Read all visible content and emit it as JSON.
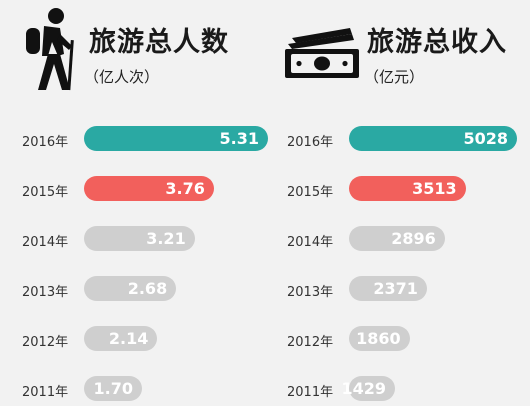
{
  "colors": {
    "highlight_2016": "#2aa9a3",
    "highlight_2015": "#f2605c",
    "neutral": "#cfcfcf"
  },
  "chart_data": [
    {
      "type": "bar",
      "orientation": "horizontal",
      "icon": "hiker-icon",
      "title": "旅游总人数",
      "subtitle": "（亿人次）",
      "categories": [
        "2016年",
        "2015年",
        "2014年",
        "2013年",
        "2012年",
        "2011年"
      ],
      "values": [
        5.31,
        3.76,
        3.21,
        2.68,
        2.14,
        1.7
      ],
      "value_labels": [
        "5.31",
        "3.76",
        "3.21",
        "2.68",
        "2.14",
        "1.70"
      ],
      "bar_colors": [
        "#2aa9a3",
        "#f2605c",
        "#cfcfcf",
        "#cfcfcf",
        "#cfcfcf",
        "#cfcfcf"
      ]
    },
    {
      "type": "bar",
      "orientation": "horizontal",
      "icon": "money-icon",
      "title": "旅游总收入",
      "subtitle": "（亿元）",
      "categories": [
        "2016年",
        "2015年",
        "2014年",
        "2013年",
        "2012年",
        "2011年"
      ],
      "values": [
        5028,
        3513,
        2896,
        2371,
        1860,
        1429
      ],
      "value_labels": [
        "5028",
        "3513",
        "2896",
        "2371",
        "1860",
        "1429"
      ],
      "bar_colors": [
        "#2aa9a3",
        "#f2605c",
        "#cfcfcf",
        "#cfcfcf",
        "#cfcfcf",
        "#cfcfcf"
      ]
    }
  ]
}
